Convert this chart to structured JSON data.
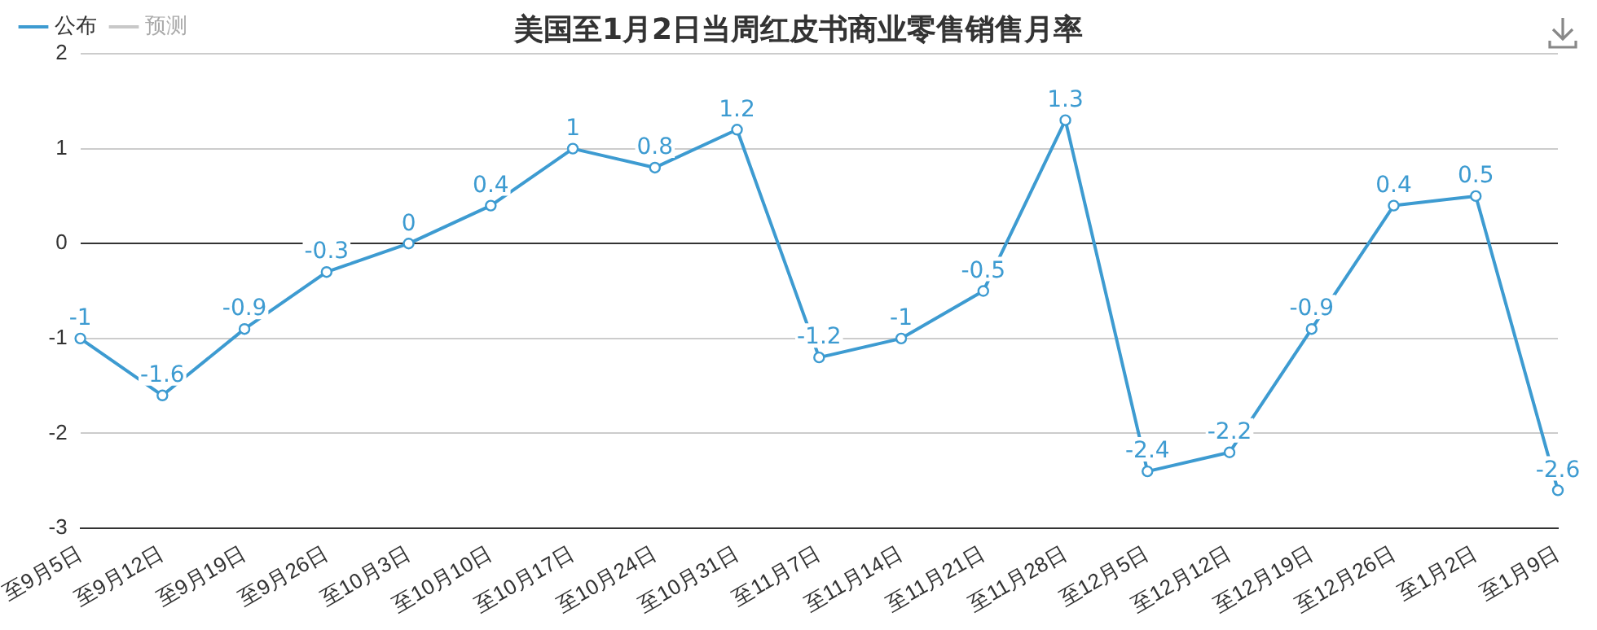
{
  "chart_data": {
    "type": "line",
    "title": "美国至1月2日当周红皮书商业零售销售月率",
    "categories": [
      "至9月5日",
      "至9月12日",
      "至9月19日",
      "至9月26日",
      "至10月3日",
      "至10月10日",
      "至10月17日",
      "至10月24日",
      "至10月31日",
      "至11月7日",
      "至11月14日",
      "至11月21日",
      "至11月28日",
      "至12月5日",
      "至12月12日",
      "至12月19日",
      "至12月26日",
      "至1月2日",
      "至1月9日"
    ],
    "series": [
      {
        "name": "公布",
        "color": "#3d9bd1",
        "values": [
          -1,
          -1.6,
          -0.9,
          -0.3,
          0,
          0.4,
          1,
          0.8,
          1.2,
          -1.2,
          -1,
          -0.5,
          1.3,
          -2.4,
          -2.2,
          -0.9,
          0.4,
          0.5,
          -2.6
        ]
      },
      {
        "name": "预测",
        "color": "#c8c8c8",
        "values": [
          null,
          null,
          null,
          null,
          null,
          null,
          null,
          null,
          null,
          null,
          null,
          null,
          null,
          null,
          null,
          null,
          null,
          null,
          null
        ]
      }
    ],
    "ylim": [
      -3,
      2
    ],
    "yticks": [
      -3,
      -2,
      -1,
      0,
      1,
      2
    ],
    "grid": "y",
    "legend": "top left",
    "marker": "circle",
    "line_style": "solid",
    "data_labels": true
  }
}
